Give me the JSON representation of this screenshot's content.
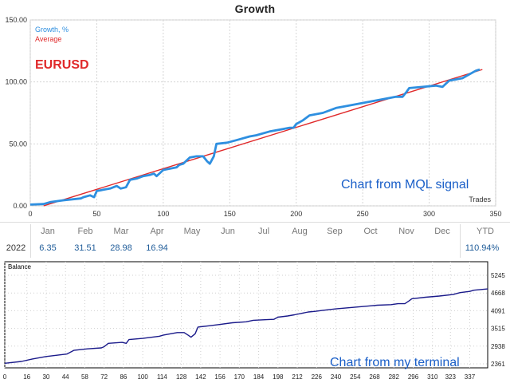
{
  "header": {
    "title": "Growth"
  },
  "chart_data": [
    {
      "type": "line",
      "legend": [
        "Growth, %",
        "Average"
      ],
      "annotations": [
        "EURUSD",
        "Chart from MQL signal"
      ],
      "xlabel": "Trades",
      "ylabel": "",
      "xlim": [
        0,
        350
      ],
      "ylim": [
        0,
        150
      ],
      "x_ticks": [
        "0",
        "50",
        "100",
        "150",
        "200",
        "250",
        "300",
        "350"
      ],
      "y_ticks": [
        "0.00",
        "50.00",
        "100.00",
        "150.00"
      ],
      "grid": true,
      "series": [
        {
          "name": "Growth, %",
          "color": "#2e8fe0",
          "points": [
            [
              0,
              1
            ],
            [
              10,
              1.5
            ],
            [
              15,
              3
            ],
            [
              25,
              4.5
            ],
            [
              38,
              6
            ],
            [
              40,
              7
            ],
            [
              45,
              8.5
            ],
            [
              48,
              7
            ],
            [
              50,
              12
            ],
            [
              55,
              13
            ],
            [
              60,
              14
            ],
            [
              65,
              16
            ],
            [
              68,
              14
            ],
            [
              72,
              15
            ],
            [
              75,
              21
            ],
            [
              80,
              22
            ],
            [
              85,
              24
            ],
            [
              90,
              25
            ],
            [
              93,
              26
            ],
            [
              95,
              24
            ],
            [
              97,
              26
            ],
            [
              100,
              29
            ],
            [
              105,
              30
            ],
            [
              110,
              31
            ],
            [
              112,
              33
            ],
            [
              115,
              34
            ],
            [
              120,
              39
            ],
            [
              125,
              40
            ],
            [
              130,
              40
            ],
            [
              133,
              36
            ],
            [
              135,
              34
            ],
            [
              138,
              40
            ],
            [
              140,
              50
            ],
            [
              148,
              51
            ],
            [
              155,
              53
            ],
            [
              165,
              56
            ],
            [
              170,
              57
            ],
            [
              180,
              60
            ],
            [
              185,
              61
            ],
            [
              190,
              62
            ],
            [
              195,
              63
            ],
            [
              198,
              63
            ],
            [
              200,
              66
            ],
            [
              205,
              69
            ],
            [
              210,
              73
            ],
            [
              220,
              75
            ],
            [
              230,
              79
            ],
            [
              235,
              80
            ],
            [
              245,
              82
            ],
            [
              255,
              84
            ],
            [
              265,
              86
            ],
            [
              275,
              88
            ],
            [
              280,
              88
            ],
            [
              283,
              92
            ],
            [
              285,
              95
            ],
            [
              295,
              96
            ],
            [
              305,
              97
            ],
            [
              310,
              96
            ],
            [
              315,
              101
            ],
            [
              325,
              103
            ],
            [
              335,
              109
            ],
            [
              338,
              110
            ]
          ]
        },
        {
          "name": "Average",
          "color": "#e0292a",
          "points": [
            [
              10,
              0
            ],
            [
              340,
              110
            ]
          ]
        }
      ]
    },
    {
      "type": "line",
      "title": "Balance",
      "annotations": [
        "Chart from my terminal"
      ],
      "xlim": [
        0,
        350
      ],
      "ylim": [
        2361,
        5245
      ],
      "x_ticks": [
        "0",
        "16",
        "30",
        "44",
        "58",
        "72",
        "86",
        "100",
        "114",
        "128",
        "142",
        "156",
        "170",
        "184",
        "198",
        "212",
        "226",
        "240",
        "254",
        "268",
        "282",
        "296",
        "310",
        "323",
        "337"
      ],
      "y_ticks": [
        "2361",
        "2938",
        "3515",
        "4091",
        "4668",
        "5245"
      ],
      "grid": true,
      "series": [
        {
          "name": "Balance",
          "color": "#1a1a8a",
          "points": [
            [
              0,
              2380
            ],
            [
              12,
              2440
            ],
            [
              20,
              2520
            ],
            [
              30,
              2600
            ],
            [
              45,
              2680
            ],
            [
              50,
              2800
            ],
            [
              60,
              2850
            ],
            [
              70,
              2880
            ],
            [
              72,
              2920
            ],
            [
              75,
              3030
            ],
            [
              85,
              3060
            ],
            [
              88,
              3030
            ],
            [
              90,
              3150
            ],
            [
              100,
              3190
            ],
            [
              112,
              3260
            ],
            [
              115,
              3300
            ],
            [
              125,
              3380
            ],
            [
              130,
              3380
            ],
            [
              133,
              3290
            ],
            [
              135,
              3230
            ],
            [
              138,
              3340
            ],
            [
              140,
              3560
            ],
            [
              148,
              3600
            ],
            [
              155,
              3640
            ],
            [
              165,
              3700
            ],
            [
              175,
              3730
            ],
            [
              180,
              3780
            ],
            [
              190,
              3800
            ],
            [
              195,
              3810
            ],
            [
              198,
              3880
            ],
            [
              205,
              3920
            ],
            [
              210,
              3960
            ],
            [
              220,
              4050
            ],
            [
              225,
              4070
            ],
            [
              230,
              4100
            ],
            [
              240,
              4150
            ],
            [
              250,
              4190
            ],
            [
              260,
              4230
            ],
            [
              265,
              4250
            ],
            [
              270,
              4270
            ],
            [
              280,
              4290
            ],
            [
              285,
              4320
            ],
            [
              290,
              4320
            ],
            [
              293,
              4410
            ],
            [
              295,
              4480
            ],
            [
              305,
              4530
            ],
            [
              315,
              4570
            ],
            [
              325,
              4620
            ],
            [
              330,
              4680
            ],
            [
              337,
              4720
            ],
            [
              340,
              4760
            ],
            [
              350,
              4800
            ]
          ]
        }
      ]
    }
  ],
  "monthly_table": {
    "year": "2022",
    "months": [
      "Jan",
      "Feb",
      "Mar",
      "Apr",
      "May",
      "Jun",
      "Jul",
      "Aug",
      "Sep",
      "Oct",
      "Nov",
      "Dec"
    ],
    "values": [
      "6.35",
      "31.51",
      "28.98",
      "16.94",
      "",
      "",
      "",
      "",
      "",
      "",
      "",
      ""
    ],
    "ytd_label": "YTD",
    "ytd_value": "110.94%"
  }
}
